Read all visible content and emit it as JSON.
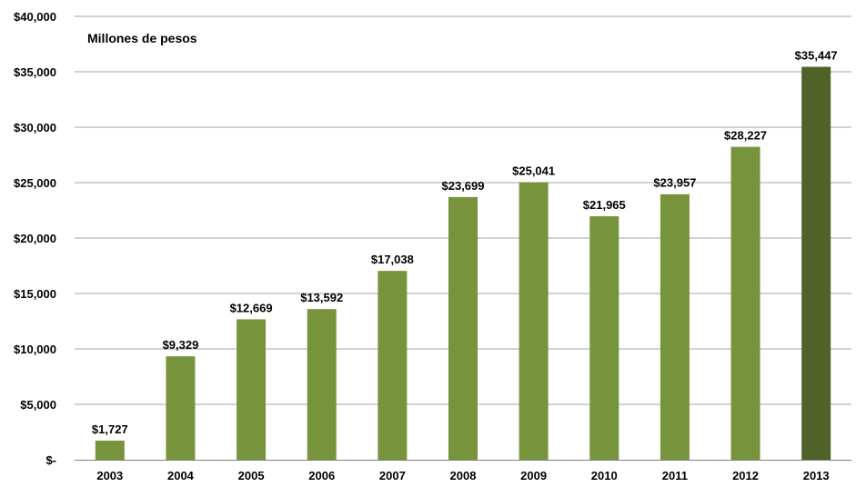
{
  "chart_data": {
    "type": "bar",
    "unit_label": "Millones de pesos",
    "categories": [
      "2003",
      "2004",
      "2005",
      "2006",
      "2007",
      "2008",
      "2009",
      "2010",
      "2011",
      "2012",
      "2013"
    ],
    "values": [
      1727,
      9329,
      12669,
      13592,
      17038,
      23699,
      25041,
      21965,
      23957,
      28227,
      35447
    ],
    "data_labels": [
      "$1,727",
      "$9,329",
      "$12,669",
      "$13,592",
      "$17,038",
      "$23,699",
      "$25,041",
      "$21,965",
      "$23,957",
      "$28,227",
      "$35,447"
    ],
    "y_ticks": [
      0,
      5000,
      10000,
      15000,
      20000,
      25000,
      30000,
      35000,
      40000
    ],
    "y_tick_labels": [
      "$-",
      "$5,000",
      "$10,000",
      "$15,000",
      "$20,000",
      "$25,000",
      "$30,000",
      "$35,000",
      "$40,000"
    ],
    "ylim": [
      0,
      40000
    ],
    "grid": true,
    "colors": {
      "bar": "#77933c",
      "highlight_bar": "#4f6228",
      "gridline": "#a6a6a6"
    },
    "highlight_category": "2013"
  }
}
